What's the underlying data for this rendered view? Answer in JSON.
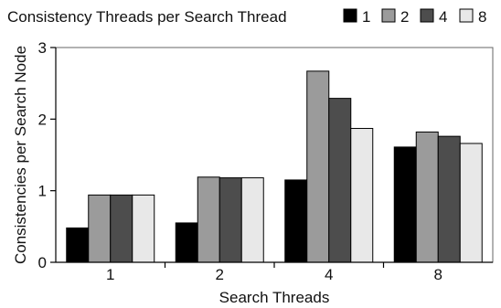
{
  "chart_data": {
    "type": "bar",
    "title": "",
    "xlabel": "Search Threads",
    "ylabel": "Consistencies per Search Node",
    "categories": [
      "1",
      "2",
      "4",
      "8"
    ],
    "ylim": [
      0,
      3
    ],
    "yticks": [
      0,
      1,
      2,
      3
    ],
    "grid": false,
    "legend": {
      "title": "Consistency Threads per Search Thread",
      "placement": "top"
    },
    "series": [
      {
        "name": "1",
        "color": "#000000",
        "values": [
          0.48,
          0.55,
          1.15,
          1.61
        ]
      },
      {
        "name": "2",
        "color": "#9b9b9b",
        "values": [
          0.94,
          1.19,
          2.67,
          1.82
        ]
      },
      {
        "name": "4",
        "color": "#4d4d4d",
        "values": [
          0.94,
          1.18,
          2.29,
          1.76
        ]
      },
      {
        "name": "8",
        "color": "#e8e8e8",
        "values": [
          0.94,
          1.18,
          1.87,
          1.66
        ]
      }
    ]
  }
}
